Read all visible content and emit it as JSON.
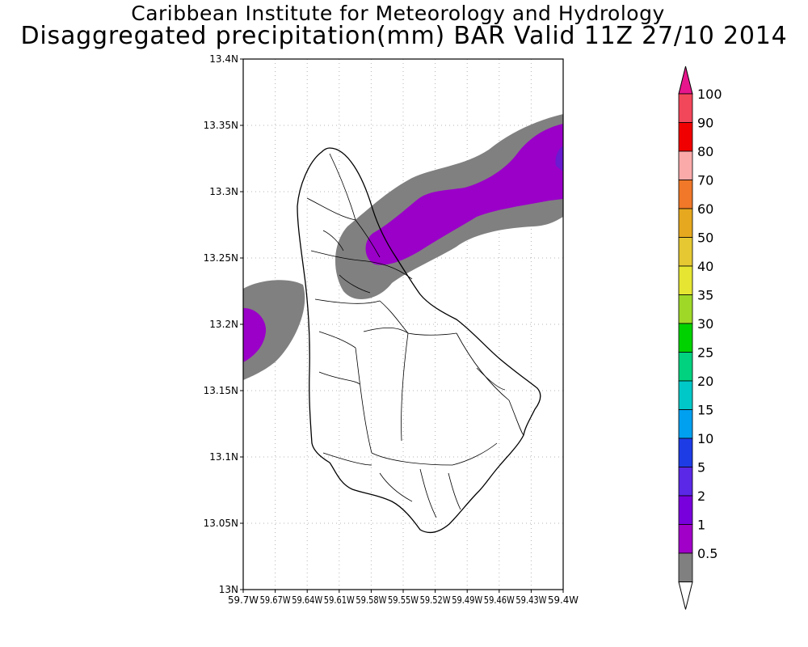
{
  "header": {
    "title": "Caribbean Institute for Meteorology and Hydrology",
    "subtitle": "Disaggregated precipitation(mm) BAR Valid 11Z 27/10 2014"
  },
  "map": {
    "region": "Barbados",
    "lon_range": [
      -59.7,
      -59.4
    ],
    "lat_range": [
      13.0,
      13.4
    ],
    "gridlines": true,
    "lat_ticks": [
      {
        "value": 13.0,
        "label": "13N"
      },
      {
        "value": 13.05,
        "label": "13.05N"
      },
      {
        "value": 13.1,
        "label": "13.1N"
      },
      {
        "value": 13.15,
        "label": "13.15N"
      },
      {
        "value": 13.2,
        "label": "13.2N"
      },
      {
        "value": 13.25,
        "label": "13.25N"
      },
      {
        "value": 13.3,
        "label": "13.3N"
      },
      {
        "value": 13.35,
        "label": "13.35N"
      },
      {
        "value": 13.4,
        "label": "13.4N"
      }
    ],
    "lon_ticks": [
      {
        "value": -59.7,
        "label": "59.7W"
      },
      {
        "value": -59.67,
        "label": "59.67W"
      },
      {
        "value": -59.64,
        "label": "59.64W"
      },
      {
        "value": -59.61,
        "label": "59.61W"
      },
      {
        "value": -59.58,
        "label": "59.58W"
      },
      {
        "value": -59.55,
        "label": "59.55W"
      },
      {
        "value": -59.52,
        "label": "59.52W"
      },
      {
        "value": -59.49,
        "label": "59.49W"
      },
      {
        "value": -59.46,
        "label": "59.46W"
      },
      {
        "value": -59.43,
        "label": "59.43W"
      },
      {
        "value": -59.4,
        "label": "59.4W"
      }
    ],
    "precip_colors": {
      "band_0_5_1": "#808080",
      "band_1_2": "#9a00c8",
      "band_2_5": "#6a1ad0"
    }
  },
  "colorbar": {
    "top_color": "#e8168c",
    "bottom_color": "#ffffff",
    "levels": [
      {
        "label": "100",
        "color": "#f2465a"
      },
      {
        "label": "90",
        "color": "#f00000"
      },
      {
        "label": "80",
        "color": "#fbaaaa"
      },
      {
        "label": "70",
        "color": "#f07828"
      },
      {
        "label": "60",
        "color": "#e6a81e"
      },
      {
        "label": "50",
        "color": "#e6c832"
      },
      {
        "label": "40",
        "color": "#e6e632"
      },
      {
        "label": "35",
        "color": "#a0d828"
      },
      {
        "label": "30",
        "color": "#00d200"
      },
      {
        "label": "25",
        "color": "#00d280"
      },
      {
        "label": "20",
        "color": "#00c8c8"
      },
      {
        "label": "15",
        "color": "#00a0f0"
      },
      {
        "label": "10",
        "color": "#1e3ce6"
      },
      {
        "label": "5",
        "color": "#5a28e6"
      },
      {
        "label": "2",
        "color": "#7800dc"
      },
      {
        "label": "1",
        "color": "#a000c8"
      },
      {
        "label": "0.5",
        "color": "#808080"
      }
    ]
  }
}
